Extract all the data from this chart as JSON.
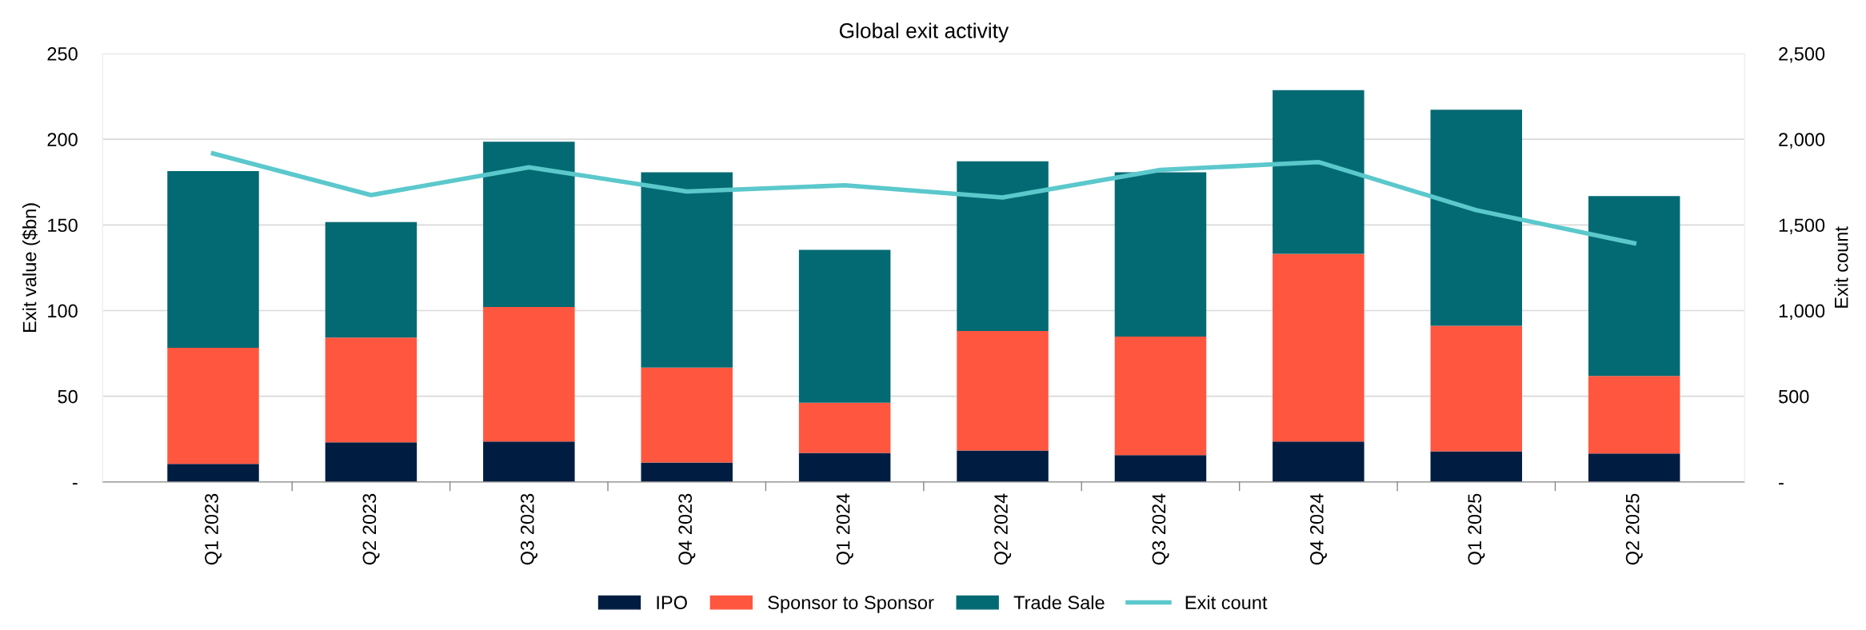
{
  "chart_data": {
    "type": "bar",
    "title": "Global exit activity",
    "ylabel": "Exit value ($bn)",
    "y2label": "Exit count",
    "categories": [
      "Q1 2023",
      "Q2 2023",
      "Q3 2023",
      "Q4 2023",
      "Q1 2024",
      "Q2 2024",
      "Q3 2024",
      "Q4 2024",
      "Q1 2025",
      "Q2 2025"
    ],
    "stacked": true,
    "series": [
      {
        "name": "IPO",
        "color": "#001d41",
        "values": [
          10.5,
          23.1,
          23.6,
          11.4,
          16.9,
          18.3,
          15.7,
          23.6,
          17.9,
          16.6
        ]
      },
      {
        "name": "Sponsor to Sponsor",
        "color": "#ff5640",
        "values": [
          67.8,
          61.2,
          78.5,
          55.3,
          29.3,
          69.8,
          69.1,
          109.5,
          73.2,
          45.2
        ]
      },
      {
        "name": "Trade Sale",
        "color": "#036a73",
        "values": [
          103.1,
          67.4,
          96.5,
          114.0,
          89.3,
          99.0,
          95.9,
          95.5,
          126.1,
          105.0
        ]
      },
      {
        "name": "Exit count",
        "type": "line",
        "axis": "y2",
        "color": "#5bc8cc",
        "values": [
          1917,
          1674,
          1836,
          1695,
          1731,
          1660,
          1821,
          1867,
          1586,
          1393
        ]
      }
    ],
    "ylim": [
      0,
      250
    ],
    "yticks": [
      {
        "value": 0,
        "label": "-"
      },
      50,
      100,
      150,
      200,
      250
    ],
    "y2lim": [
      0,
      2500
    ],
    "y2ticks": [
      {
        "value": 0,
        "label": "-"
      },
      {
        "value": 500,
        "label": "500"
      },
      {
        "value": 1000,
        "label": "1,000"
      },
      {
        "value": 1500,
        "label": "1,500"
      },
      {
        "value": 2000,
        "label": "2,000"
      },
      {
        "value": 2500,
        "label": "2,500"
      }
    ],
    "grid": "y",
    "legend": "bottom",
    "marker": "none",
    "line_style": "solid"
  }
}
